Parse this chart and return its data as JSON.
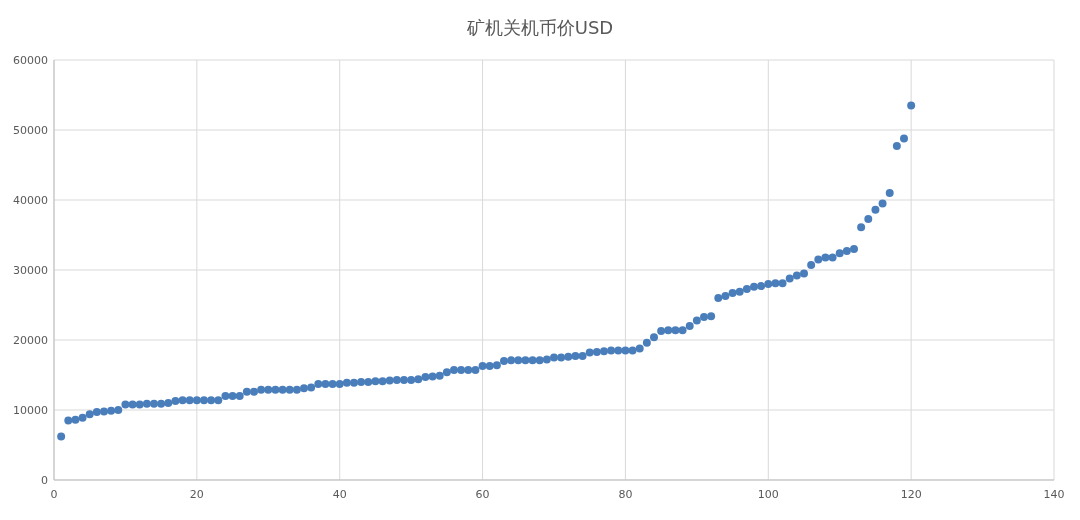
{
  "chart_data": {
    "type": "scatter",
    "title": "矿机关机币价USD",
    "x": [
      1,
      2,
      3,
      4,
      5,
      6,
      7,
      8,
      9,
      10,
      11,
      12,
      13,
      14,
      15,
      16,
      17,
      18,
      19,
      20,
      21,
      22,
      23,
      24,
      25,
      26,
      27,
      28,
      29,
      30,
      31,
      32,
      33,
      34,
      35,
      36,
      37,
      38,
      39,
      40,
      41,
      42,
      43,
      44,
      45,
      46,
      47,
      48,
      49,
      50,
      51,
      52,
      53,
      54,
      55,
      56,
      57,
      58,
      59,
      60,
      61,
      62,
      63,
      64,
      65,
      66,
      67,
      68,
      69,
      70,
      71,
      72,
      73,
      74,
      75,
      76,
      77,
      78,
      79,
      80,
      81,
      82,
      83,
      84,
      85,
      86,
      87,
      88,
      89,
      90,
      91,
      92,
      93,
      94,
      95,
      96,
      97,
      98,
      99,
      100,
      101,
      102,
      103,
      104,
      105,
      106,
      107,
      108,
      109,
      110,
      111,
      112,
      113,
      114,
      115,
      116,
      117,
      118,
      119,
      120
    ],
    "series": [
      {
        "color": "#4a7ebb",
        "values": [
          6200,
          8500,
          8600,
          8900,
          9400,
          9700,
          9800,
          9900,
          10000,
          10800,
          10800,
          10800,
          10900,
          10900,
          10900,
          11000,
          11300,
          11400,
          11400,
          11400,
          11400,
          11400,
          11400,
          12000,
          12000,
          12000,
          12600,
          12600,
          12900,
          12900,
          12900,
          12900,
          12900,
          12900,
          13100,
          13200,
          13700,
          13700,
          13700,
          13700,
          13900,
          13900,
          14000,
          14000,
          14100,
          14100,
          14200,
          14300,
          14300,
          14300,
          14400,
          14700,
          14800,
          14900,
          15400,
          15700,
          15700,
          15700,
          15700,
          16300,
          16300,
          16400,
          17000,
          17100,
          17100,
          17100,
          17100,
          17100,
          17200,
          17500,
          17500,
          17600,
          17700,
          17700,
          18200,
          18300,
          18400,
          18500,
          18500,
          18500,
          18500,
          18800,
          19600,
          20400,
          21300,
          21400,
          21400,
          21400,
          22000,
          22800,
          23300,
          23400,
          26000,
          26300,
          26700,
          26900,
          27300,
          27600,
          27700,
          28000,
          28100,
          28100,
          28800,
          29200,
          29500,
          30700,
          31500,
          31800,
          31800,
          32400,
          32700,
          33000,
          36100,
          37300,
          38600,
          39500,
          41000,
          47700,
          48800,
          53500
        ]
      }
    ],
    "xlim": [
      0,
      140
    ],
    "xticks": [
      0,
      20,
      40,
      60,
      80,
      100,
      120,
      140
    ],
    "ylim": [
      0,
      60000
    ],
    "yticks": [
      0,
      10000,
      20000,
      30000,
      40000,
      50000,
      60000
    ],
    "grid": true,
    "marker": "circle"
  }
}
